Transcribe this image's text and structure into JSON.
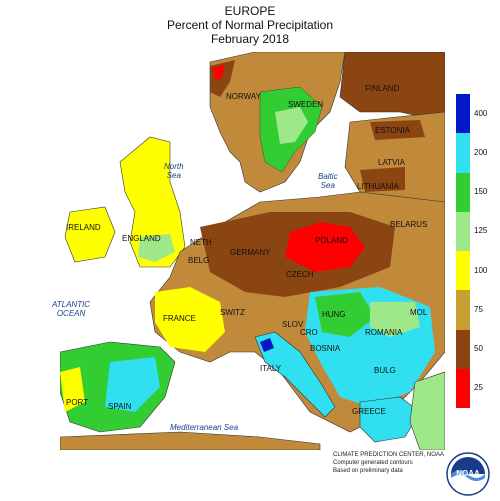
{
  "header": {
    "region": "EUROPE",
    "metric": "Percent of Normal Precipitation",
    "period": "February 2018"
  },
  "seas": {
    "north_sea": [
      "North",
      "Sea"
    ],
    "baltic_sea": [
      "Baltic",
      "Sea"
    ],
    "atlantic_ocean": [
      "ATLANTIC",
      "OCEAN"
    ],
    "mediterranean_sea": "Mediterranean Sea"
  },
  "countries": {
    "norway": "NORWAY",
    "sweden": "SWEDEN",
    "finland": "FINLAND",
    "estonia": "ESTONIA",
    "latvia": "LATVIA",
    "lithuania": "LITHUANIA",
    "belarus": "BELARUS",
    "ireland": "IRELAND",
    "england": "ENGLAND",
    "neth": "NETH",
    "belg": "BELG",
    "germany": "GERMANY",
    "poland": "POLAND",
    "czech": "CZECH",
    "france": "FRANCE",
    "switz": "SWITZ",
    "hung": "HUNG",
    "romania": "ROMANIA",
    "mol": "MOL",
    "slov": "SLOV",
    "cro": "CRO",
    "bosnia": "BOSNIA",
    "italy": "ITALY",
    "bulg": "BULG",
    "greece": "GREECE",
    "port": "PORT",
    "spain": "SPAIN"
  },
  "legend": {
    "ticks": [
      "400",
      "200",
      "150",
      "125",
      "100",
      "75",
      "50",
      "25"
    ],
    "colors": [
      "#0018c8",
      "#30e0f0",
      "#32cd32",
      "#9ee88a",
      "#ffff00",
      "#c8a032",
      "#8b4513",
      "#ff0000"
    ]
  },
  "colors": {
    "sea": "#ffffff",
    "very_dry": "#ff0000",
    "dry": "#8b4513",
    "below_normal": "#c08a3a",
    "near_normal": "#ffff00",
    "above_normal": "#9ee88a",
    "wet": "#32cd32",
    "very_wet": "#30e0f0",
    "extreme": "#0018c8"
  },
  "credit": {
    "line1": "CLIMATE PREDICTION CENTER, NOAA",
    "line2": "Computer generated contours",
    "line3": "Based on preliminary data"
  },
  "logo": {
    "text": "NOAA",
    "icon": "noaa-logo-icon"
  }
}
